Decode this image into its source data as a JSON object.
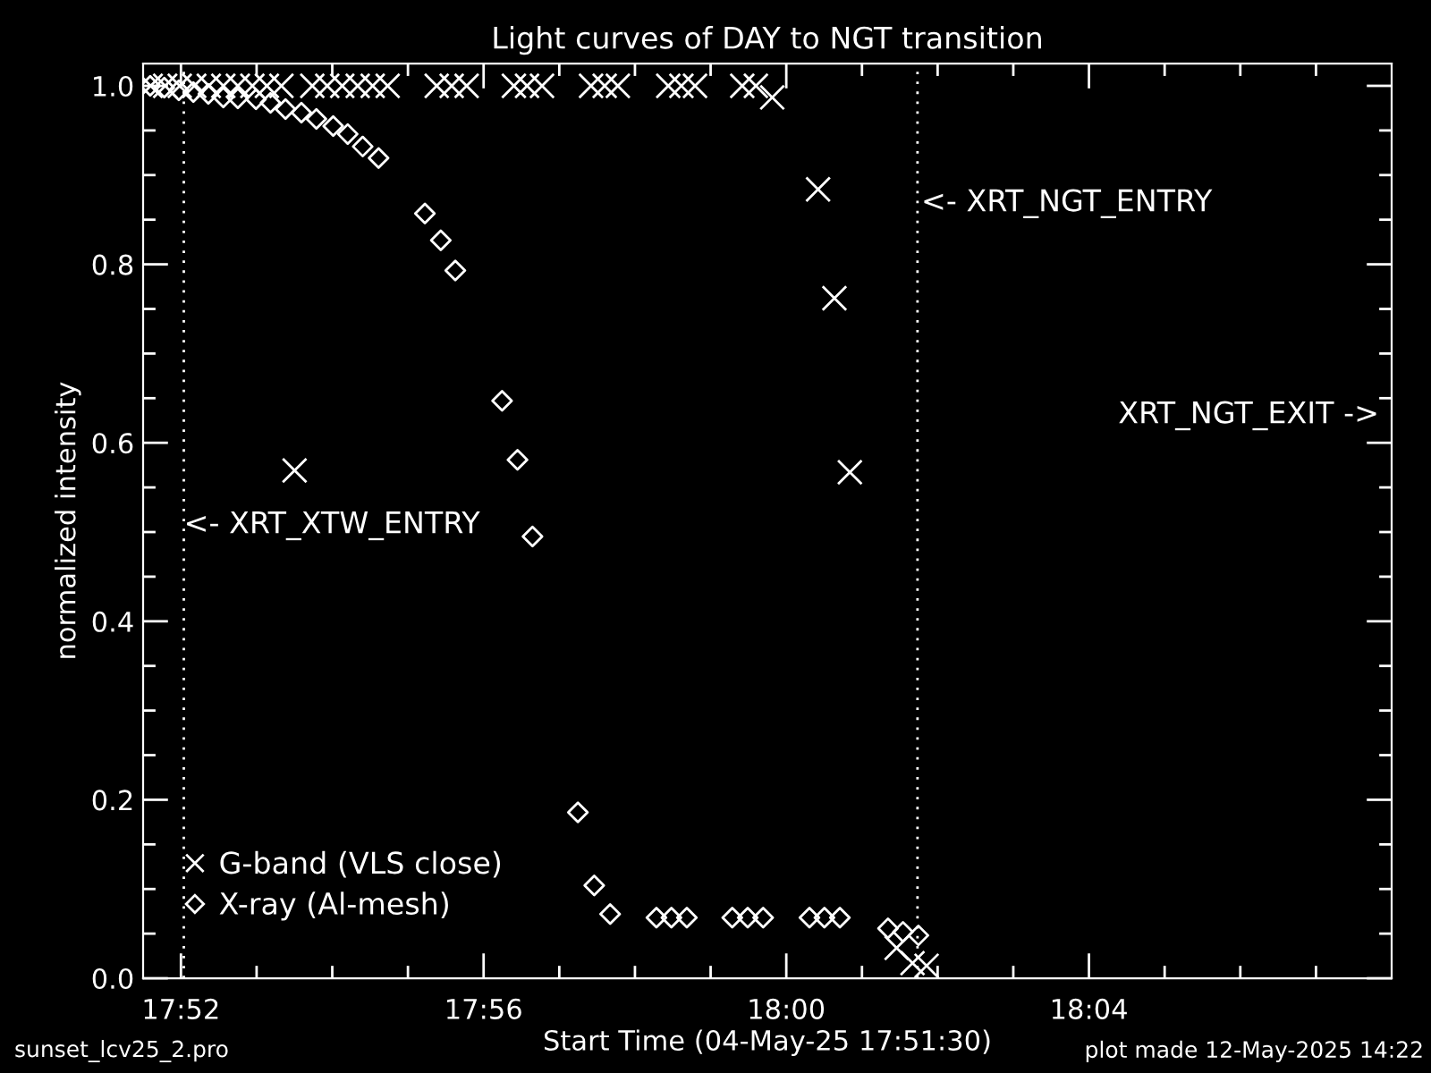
{
  "chart_data": {
    "type": "scatter",
    "title": "Light curves of DAY to NGT transition",
    "xlabel": "Start Time (04-May-25 17:51:30)",
    "ylabel": "normalized intensity",
    "xlim": [
      17.858333,
      18.133333
    ],
    "xticks": [
      {
        "value": 17.866667,
        "label": "17:52"
      },
      {
        "value": 17.883333,
        "label": null
      },
      {
        "value": 17.9,
        "label": null
      },
      {
        "value": 17.916667,
        "label": null
      },
      {
        "value": 17.933333,
        "label": "17:56"
      },
      {
        "value": 17.95,
        "label": null
      },
      {
        "value": 17.966667,
        "label": null
      },
      {
        "value": 17.983333,
        "label": null
      },
      {
        "value": 18.0,
        "label": "18:00"
      },
      {
        "value": 18.016667,
        "label": null
      },
      {
        "value": 18.033333,
        "label": null
      },
      {
        "value": 18.05,
        "label": null
      },
      {
        "value": 18.066667,
        "label": "18:04"
      },
      {
        "value": 18.083333,
        "label": null
      },
      {
        "value": 18.1,
        "label": null
      },
      {
        "value": 18.116667,
        "label": null
      }
    ],
    "ylim": [
      0,
      1.025
    ],
    "yticks": [
      {
        "value": 0,
        "label": "0.0"
      },
      {
        "value": 0.05,
        "label": null
      },
      {
        "value": 0.1,
        "label": null
      },
      {
        "value": 0.15,
        "label": null
      },
      {
        "value": 0.2,
        "label": "0.2"
      },
      {
        "value": 0.25,
        "label": null
      },
      {
        "value": 0.3,
        "label": null
      },
      {
        "value": 0.35,
        "label": null
      },
      {
        "value": 0.4,
        "label": "0.4"
      },
      {
        "value": 0.45,
        "label": null
      },
      {
        "value": 0.5,
        "label": null
      },
      {
        "value": 0.55,
        "label": null
      },
      {
        "value": 0.6,
        "label": "0.6"
      },
      {
        "value": 0.65,
        "label": null
      },
      {
        "value": 0.7,
        "label": null
      },
      {
        "value": 0.75,
        "label": null
      },
      {
        "value": 0.8,
        "label": "0.8"
      },
      {
        "value": 0.85,
        "label": null
      },
      {
        "value": 0.9,
        "label": null
      },
      {
        "value": 0.95,
        "label": null
      },
      {
        "value": 1.0,
        "label": "1.0"
      }
    ],
    "grid": false,
    "legend": "bottom left",
    "series": [
      {
        "name": "G-band (VLS close)",
        "color": "#ffffff",
        "marker": "cross",
        "x": [
          17.86,
          17.8632,
          17.8664,
          17.8696,
          17.8728,
          17.876,
          17.8792,
          17.8824,
          17.8856,
          17.8888,
          17.8917,
          17.8956,
          17.8989,
          17.9022,
          17.9056,
          17.9089,
          17.9122,
          17.923,
          17.9263,
          17.9296,
          17.94,
          17.9429,
          17.9462,
          17.957,
          17.96,
          17.9629,
          17.974,
          17.9769,
          17.9799,
          17.9903,
          17.9933,
          17.9969,
          18.007,
          18.0106,
          18.014,
          18.0243,
          18.0278,
          18.0309
        ],
        "values": [
          1.0,
          1.0,
          1.0,
          1.0,
          1.0,
          1.0,
          1.0,
          1.0,
          1.0,
          1.0,
          0.569,
          1.0,
          1.0,
          1.0,
          1.0,
          1.0,
          1.0,
          1.0,
          1.0,
          1.0,
          1.0,
          1.0,
          1.0,
          1.0,
          1.0,
          1.0,
          1.0,
          1.0,
          1.0,
          1.0,
          1.0,
          0.987,
          0.884,
          0.762,
          0.567,
          0.034,
          0.017,
          0.014
        ]
      },
      {
        "name": "X-ray (Al-mesh)",
        "color": "#ffffff",
        "marker": "diamond",
        "x": [
          17.8599,
          17.863,
          17.8662,
          17.8694,
          17.8727,
          17.876,
          17.8792,
          17.8832,
          17.8864,
          17.8897,
          17.8932,
          17.8965,
          17.9002,
          17.9034,
          17.9067,
          17.9102,
          17.9204,
          17.9239,
          17.9271,
          17.9374,
          17.9408,
          17.9441,
          17.9541,
          17.9577,
          17.9612,
          17.9714,
          17.9747,
          17.9781,
          17.9881,
          17.9915,
          17.9949,
          18.0051,
          18.0084,
          18.0118,
          18.0224,
          18.0257,
          18.0291
        ],
        "values": [
          1.0,
          0.998,
          0.995,
          0.993,
          0.991,
          0.987,
          0.986,
          0.985,
          0.981,
          0.974,
          0.97,
          0.963,
          0.955,
          0.946,
          0.932,
          0.919,
          0.857,
          0.827,
          0.793,
          0.647,
          0.581,
          0.495,
          0.186,
          0.104,
          0.072,
          0.068,
          0.068,
          0.068,
          0.068,
          0.068,
          0.068,
          0.068,
          0.068,
          0.068,
          0.056,
          0.052,
          0.048
        ]
      }
    ],
    "ref_lines": [
      {
        "axis": "x",
        "value": 17.8673,
        "color": "#ffffff",
        "line_style": "dotted"
      },
      {
        "axis": "x",
        "value": 18.0289,
        "color": "#ffffff",
        "line_style": "dotted"
      }
    ],
    "annotations": [
      {
        "text": "<- XRT_XTW_ENTRY",
        "x": 17.8673,
        "y": 0.507
      },
      {
        "text": "<- XRT_NGT_ENTRY",
        "x": 18.0297,
        "y": 0.868
      },
      "XRT_NGT_EXIT ->",
      "sunset_lcv25_2.pro",
      "plot made 12-May-2025 14:22"
    ]
  }
}
